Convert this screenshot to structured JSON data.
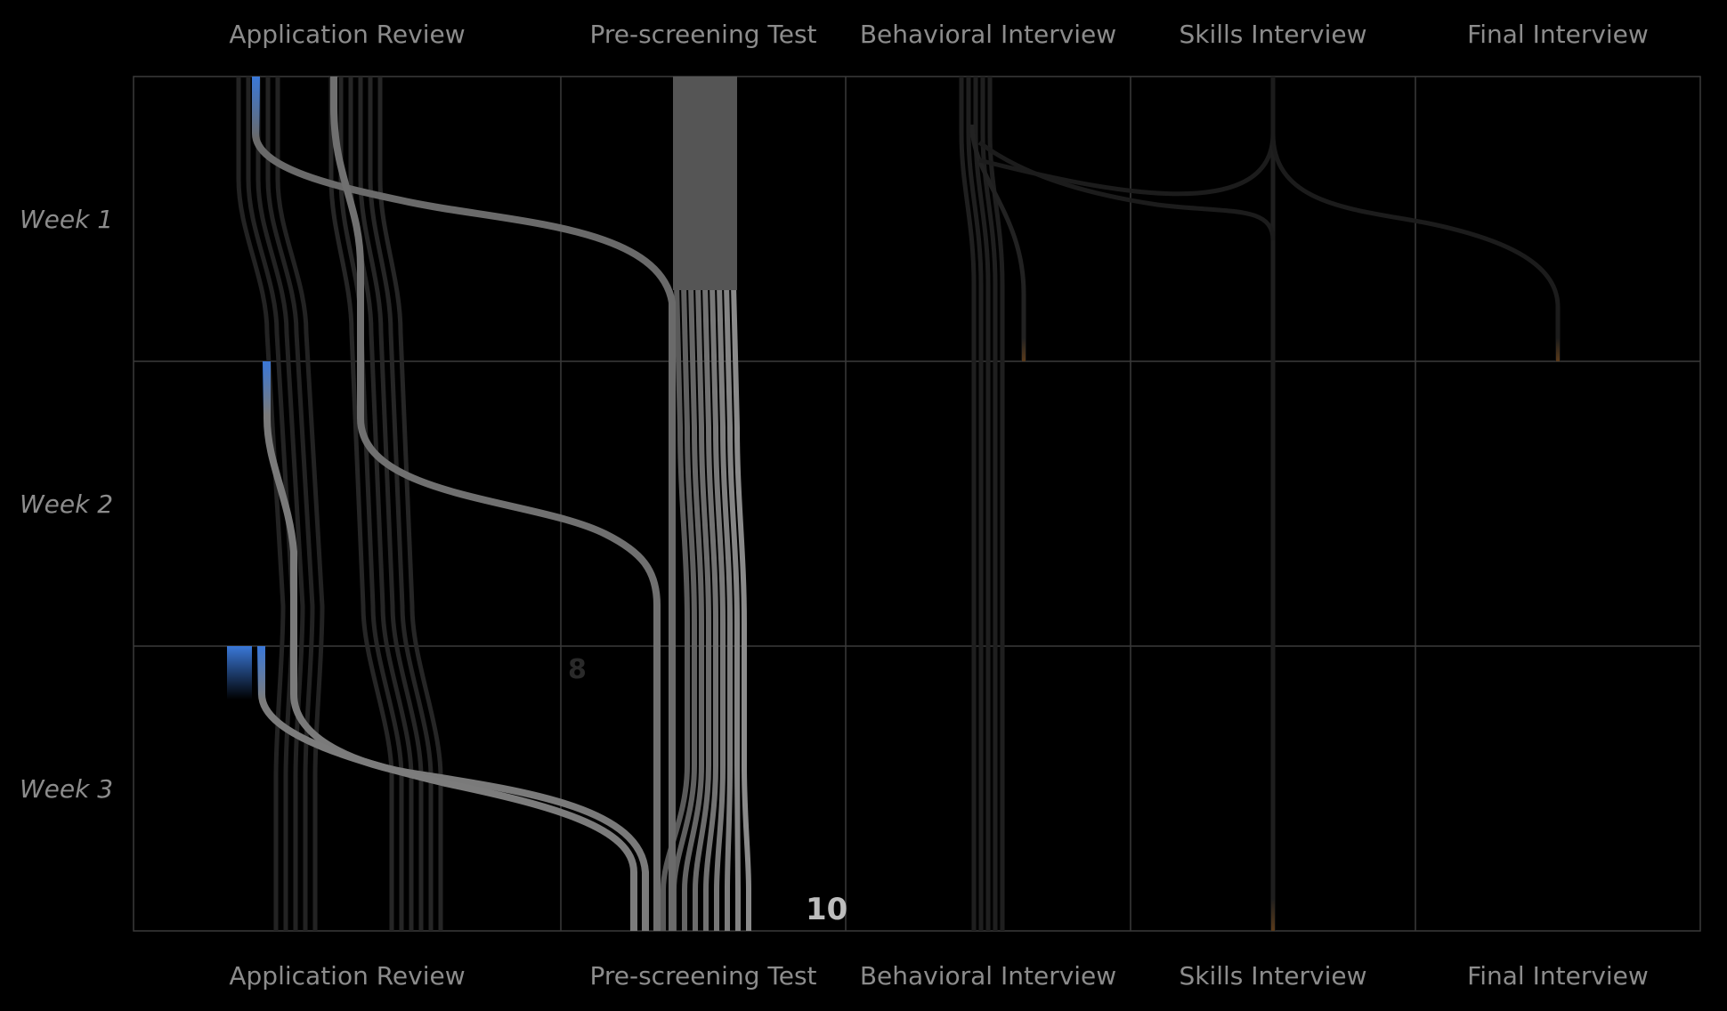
{
  "chart_data": {
    "type": "flow-timeline",
    "stages": [
      "Application Review",
      "Pre-screening Test",
      "Behavioral Interview",
      "Skills Interview",
      "Final Interview"
    ],
    "weeks": [
      "Week 1",
      "Week 2",
      "Week 3"
    ],
    "count_labels": [
      {
        "text": "8",
        "stage": "Pre-screening Test",
        "week": "Week 3",
        "emphasis": "faint"
      },
      {
        "text": "10",
        "stage": "Pre-screening Test",
        "week": "Week 3",
        "emphasis": "strong"
      }
    ],
    "colors": {
      "background": "#000000",
      "grid": "#3a3a3a",
      "label": "#8c8c8c",
      "new_entry": "#3a78d8",
      "exit": "#5a3a1a",
      "highlight_flow": "#8a8a8a",
      "background_flow": "#2a2a2a"
    }
  }
}
